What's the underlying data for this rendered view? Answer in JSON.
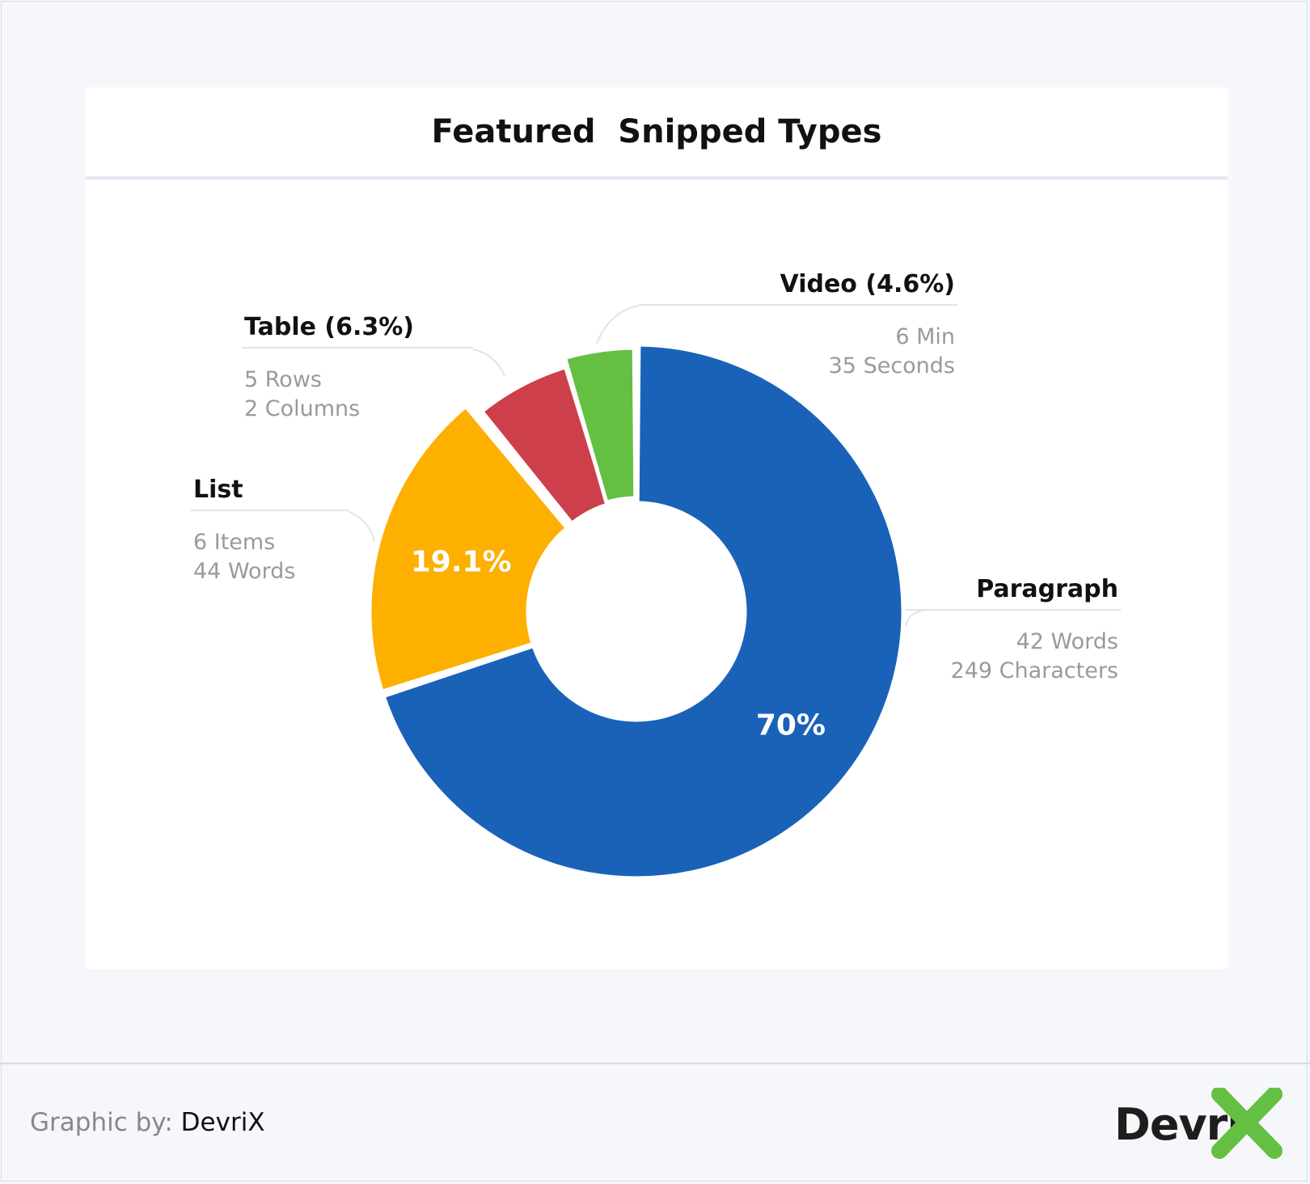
{
  "chart_data": {
    "type": "pie",
    "title": "Featured  Snipped Types",
    "slices": [
      {
        "name": "Paragraph",
        "value": 70,
        "label": "70%",
        "heading": "Paragraph",
        "details": [
          "42 Words",
          "249 Characters"
        ],
        "color": "#1a62b8"
      },
      {
        "name": "List",
        "value": 19.1,
        "label": "19.1%",
        "heading": "List",
        "details": [
          "6 Items",
          "44 Words"
        ],
        "color": "#fdb000"
      },
      {
        "name": "Table",
        "value": 6.3,
        "label": "",
        "heading": "Table (6.3%)",
        "details": [
          "5 Rows",
          "2 Columns"
        ],
        "color": "#cc3f4b"
      },
      {
        "name": "Video",
        "value": 4.6,
        "label": "",
        "heading": "Video (4.6%)",
        "details": [
          "6 Min",
          "35 Seconds"
        ],
        "color": "#64bf42"
      }
    ]
  },
  "footer": {
    "credit_prefix": "Graphic by:",
    "credit_brand": "DevriX",
    "logo_text": "Devri",
    "logo_accent_color": "#64bf42"
  }
}
